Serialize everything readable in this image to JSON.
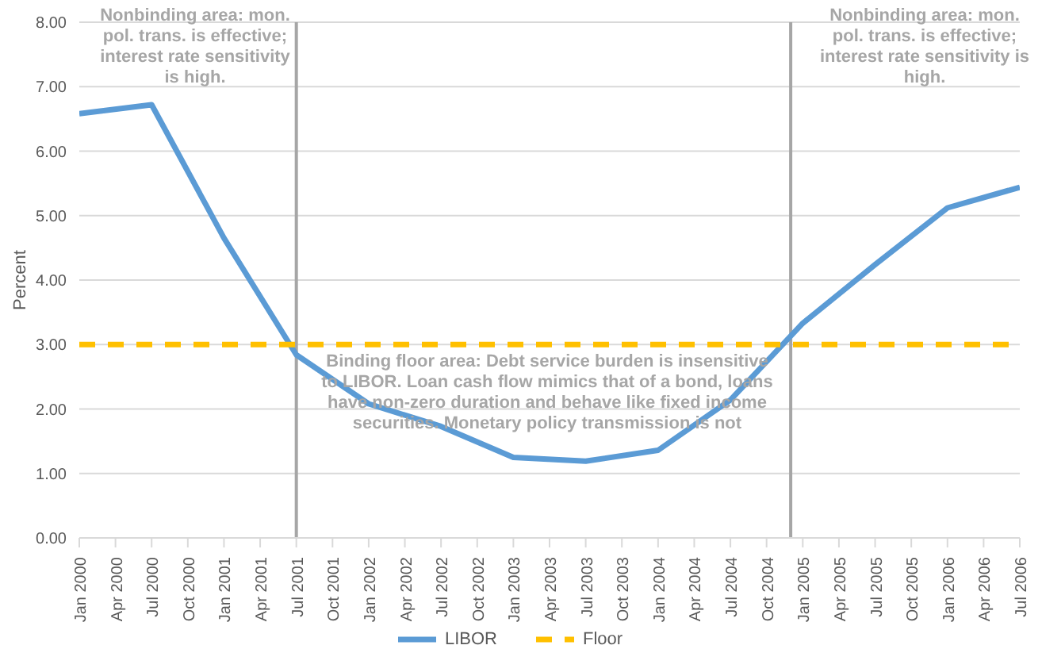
{
  "chart_data": {
    "type": "line",
    "ylabel": "Percent",
    "xlim": [
      "2000-01",
      "2006-07"
    ],
    "ylim": [
      0,
      8
    ],
    "yticks": [
      {
        "value": 0,
        "label": "0.00"
      },
      {
        "value": 1,
        "label": "1.00"
      },
      {
        "value": 2,
        "label": "2.00"
      },
      {
        "value": 3,
        "label": "3.00"
      },
      {
        "value": 4,
        "label": "4.00"
      },
      {
        "value": 5,
        "label": "5.00"
      },
      {
        "value": 6,
        "label": "6.00"
      },
      {
        "value": 7,
        "label": "7.00"
      },
      {
        "value": 8,
        "label": "8.00"
      }
    ],
    "xticks": [
      {
        "value": "2000-01",
        "label": "Jan 2000"
      },
      {
        "value": "2000-04",
        "label": "Apr 2000"
      },
      {
        "value": "2000-07",
        "label": "Jul 2000"
      },
      {
        "value": "2000-10",
        "label": "Oct 2000"
      },
      {
        "value": "2001-01",
        "label": "Jan 2001"
      },
      {
        "value": "2001-04",
        "label": "Apr 2001"
      },
      {
        "value": "2001-07",
        "label": "Jul 2001"
      },
      {
        "value": "2001-10",
        "label": "Oct 2001"
      },
      {
        "value": "2002-01",
        "label": "Jan 2002"
      },
      {
        "value": "2002-04",
        "label": "Apr 2002"
      },
      {
        "value": "2002-07",
        "label": "Jul 2002"
      },
      {
        "value": "2002-10",
        "label": "Oct 2002"
      },
      {
        "value": "2003-01",
        "label": "Jan 2003"
      },
      {
        "value": "2003-04",
        "label": "Apr 2003"
      },
      {
        "value": "2003-07",
        "label": "Jul 2003"
      },
      {
        "value": "2003-10",
        "label": "Oct 2003"
      },
      {
        "value": "2004-01",
        "label": "Jan 2004"
      },
      {
        "value": "2004-04",
        "label": "Apr 2004"
      },
      {
        "value": "2004-07",
        "label": "Jul 2004"
      },
      {
        "value": "2004-10",
        "label": "Oct 2004"
      },
      {
        "value": "2005-01",
        "label": "Jan 2005"
      },
      {
        "value": "2005-04",
        "label": "Apr 2005"
      },
      {
        "value": "2005-07",
        "label": "Jul 2005"
      },
      {
        "value": "2005-10",
        "label": "Oct 2005"
      },
      {
        "value": "2006-01",
        "label": "Jan 2006"
      },
      {
        "value": "2006-04",
        "label": "Apr 2006"
      },
      {
        "value": "2006-07",
        "label": "Jul 2006"
      }
    ],
    "series": [
      {
        "name": "LIBOR",
        "color": "#5b9bd5",
        "line_style": "solid",
        "x": [
          "2000-01",
          "2000-07",
          "2001-01",
          "2001-07",
          "2002-01",
          "2002-07",
          "2003-01",
          "2003-07",
          "2004-01",
          "2004-07",
          "2005-01",
          "2005-07",
          "2006-01",
          "2006-07"
        ],
        "values": [
          6.58,
          6.72,
          4.65,
          2.84,
          2.08,
          1.73,
          1.25,
          1.19,
          1.36,
          2.14,
          3.33,
          4.24,
          5.12,
          5.44
        ]
      },
      {
        "name": "Floor",
        "color": "#ffc000",
        "line_style": "dashed",
        "x": [
          "2000-01",
          "2006-07"
        ],
        "values": [
          3,
          3
        ]
      }
    ],
    "ref_lines": [
      {
        "axis": "x",
        "value": "2001-07",
        "color": "#a6a6a6"
      },
      {
        "axis": "x",
        "value": "2004-12",
        "color": "#a6a6a6"
      }
    ],
    "annotations": [
      "Nonbinding area: mon. pol. trans. is effective; interest rate sensitivity is high.",
      "Binding floor area: Debt service burden is insensitive to LIBOR. Loan cash flow mimics that of a bond, loans have non-zero duration and behave like fixed income securities. Monetary policy transmission is not",
      "Nonbinding area: mon. pol. trans. is effective; interest rate sensitivity is high."
    ],
    "grid": "y",
    "legend": "bottom",
    "marker": "none"
  }
}
